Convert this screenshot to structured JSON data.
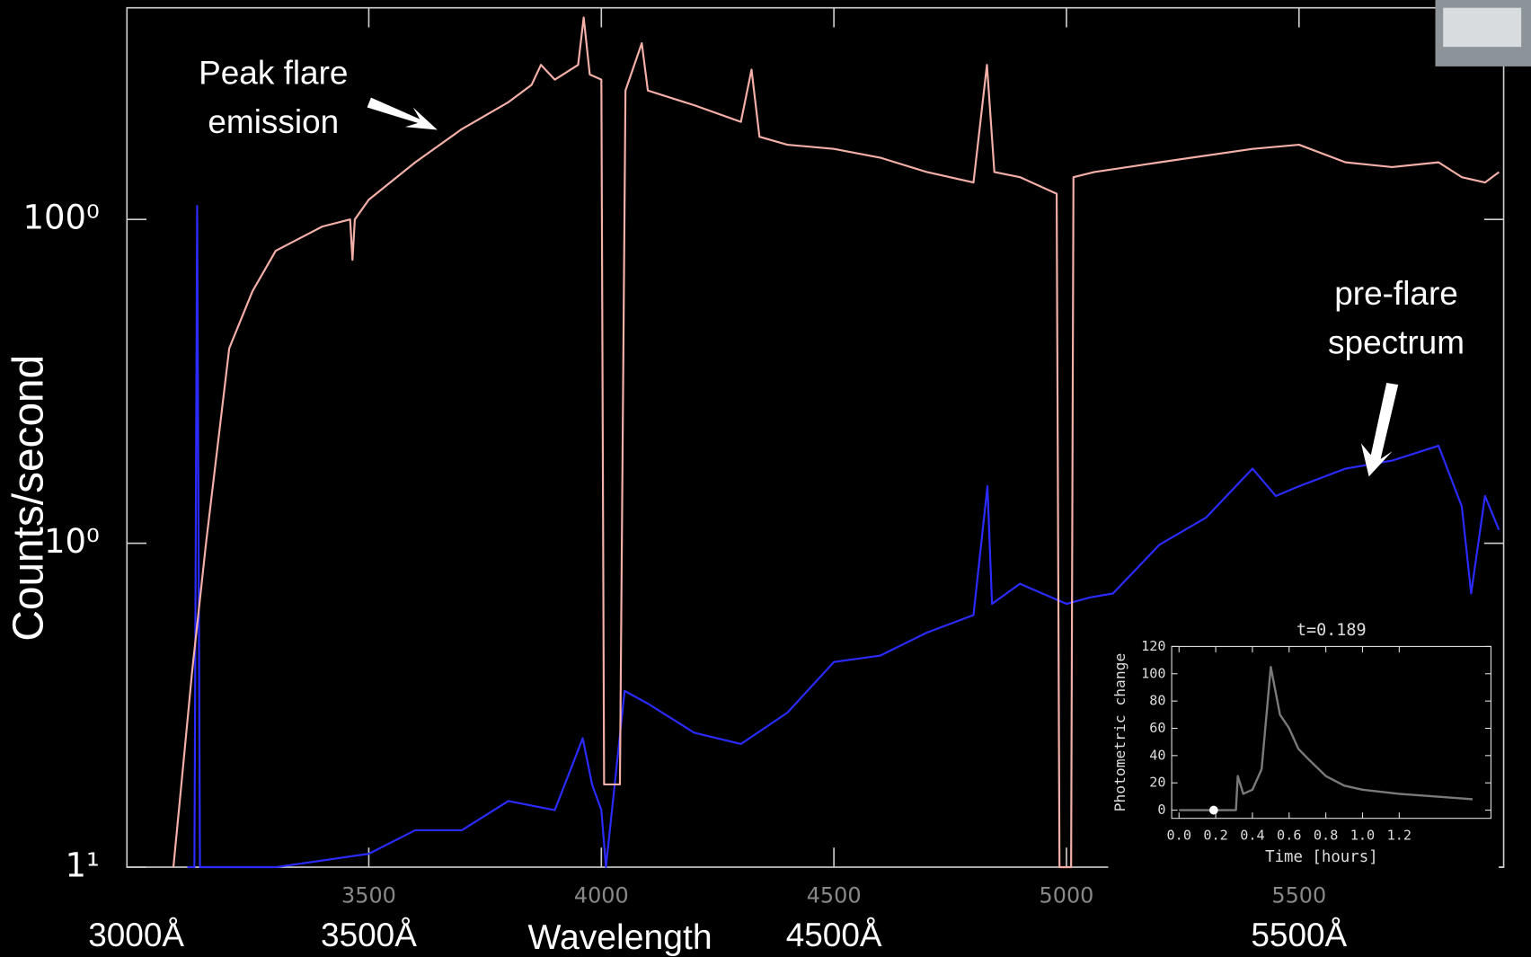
{
  "chart_data": [
    {
      "type": "line",
      "log_y": true,
      "y_label": "Counts/second",
      "x_label": "Wavelength",
      "xlim": [
        2980,
        5940
      ],
      "ylim": [
        1,
        450
      ],
      "xticks": [
        3500,
        4000,
        4500,
        5000,
        5500
      ],
      "xtick_overlay": [
        {
          "value": 3000,
          "label": "3000Å"
        },
        {
          "value": 3500,
          "label": "3500Å"
        },
        {
          "value": 4500,
          "label": "4500Å"
        },
        {
          "value": 5500,
          "label": "5500Å"
        }
      ],
      "yticks": [
        {
          "value": 1,
          "label": "1¹"
        },
        {
          "value": 10,
          "label": "10⁰"
        },
        {
          "value": 100,
          "label": "100⁰"
        }
      ],
      "series": [
        {
          "name": "pre-flare spectrum",
          "color": "#2b2bff",
          "x": [
            3110,
            3125,
            3131,
            3137,
            3150,
            3300,
            3500,
            3600,
            3700,
            3800,
            3900,
            3960,
            3980,
            4000,
            4010,
            4050,
            4100,
            4200,
            4300,
            4400,
            4500,
            4600,
            4700,
            4800,
            4830,
            4840,
            4900,
            5000,
            5050,
            5100,
            5200,
            5300,
            5400,
            5450,
            5500,
            5600,
            5700,
            5800,
            5850,
            5870,
            5900,
            5930
          ],
          "values": [
            1,
            1,
            110,
            1,
            1,
            1,
            1.1,
            1.3,
            1.3,
            1.6,
            1.5,
            2.5,
            1.8,
            1.5,
            1,
            3.5,
            3.2,
            2.6,
            2.4,
            3,
            4.3,
            4.5,
            5.3,
            6,
            15,
            6.5,
            7.5,
            6.5,
            6.8,
            7,
            9.9,
            12,
            17,
            14,
            15,
            17,
            18,
            20,
            13,
            7,
            14,
            11
          ]
        },
        {
          "name": "Peak flare emission",
          "color": "#f4b0a8",
          "x": [
            3080,
            3100,
            3120,
            3150,
            3200,
            3250,
            3300,
            3400,
            3460,
            3465,
            3470,
            3500,
            3600,
            3700,
            3800,
            3850,
            3870,
            3900,
            3950,
            3962,
            3975,
            4000,
            4006,
            4040,
            4052,
            4087,
            4100,
            4200,
            4300,
            4323,
            4340,
            4400,
            4500,
            4600,
            4700,
            4800,
            4829,
            4845,
            4900,
            4979,
            4985,
            5010,
            5015,
            5060,
            5200,
            5400,
            5500,
            5600,
            5700,
            5800,
            5850,
            5900,
            5930
          ],
          "values": [
            1,
            2,
            4,
            10,
            40,
            60,
            80,
            95,
            100,
            75,
            100,
            115,
            150,
            190,
            230,
            260,
            300,
            270,
            300,
            420,
            280,
            270,
            1.8,
            1.8,
            250,
            350,
            250,
            225,
            200,
            290,
            180,
            170,
            165,
            155,
            140,
            130,
            300,
            140,
            135,
            120,
            1,
            1,
            135,
            140,
            150,
            165,
            170,
            150,
            145,
            150,
            135,
            130,
            140
          ]
        }
      ]
    },
    {
      "type": "line",
      "title": "t=0.189",
      "y_label": "Photometric change",
      "x_label": "Time [hours]",
      "xlim": [
        -0.04,
        1.7
      ],
      "ylim": [
        -6,
        120
      ],
      "xticks": [
        {
          "value": 0,
          "label": "0.0"
        },
        0.2,
        0.4,
        0.6,
        0.8,
        {
          "value": 1,
          "label": "1.0"
        },
        1.2
      ],
      "yticks": [
        0,
        20,
        40,
        60,
        80,
        100,
        120
      ],
      "series": [
        {
          "color": "#7a7a7a",
          "x": [
            0,
            0.1,
            0.2,
            0.3,
            0.31,
            0.32,
            0.35,
            0.4,
            0.45,
            0.5,
            0.55,
            0.6,
            0.65,
            0.7,
            0.8,
            0.9,
            1.0,
            1.2,
            1.4,
            1.6
          ],
          "values": [
            0,
            0,
            0,
            0,
            0,
            25,
            12,
            15,
            30,
            105,
            70,
            60,
            45,
            38,
            25,
            18,
            15,
            12,
            10,
            8
          ]
        }
      ],
      "marker": {
        "x": 0.189,
        "y": 0
      }
    }
  ]
}
